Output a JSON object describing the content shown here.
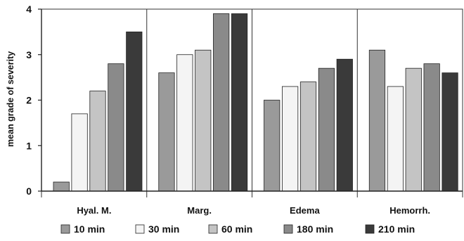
{
  "chart_data": {
    "type": "bar",
    "title": "",
    "xlabel": "",
    "ylabel": "mean grade of severity",
    "ylim": [
      0,
      4
    ],
    "yticks": [
      "0",
      "1",
      "2",
      "3",
      "4"
    ],
    "categories": [
      "Hyal. M.",
      "Marg.",
      "Edema",
      "Hemorrh."
    ],
    "grid": false,
    "legend_position": "bottom",
    "series": [
      {
        "name": "10 min",
        "color": "#9a9a9a",
        "values": [
          0.2,
          2.6,
          2.0,
          3.1
        ]
      },
      {
        "name": "30 min",
        "color": "#f4f4f4",
        "values": [
          1.7,
          3.0,
          2.3,
          2.3
        ]
      },
      {
        "name": "60 min",
        "color": "#c4c4c4",
        "values": [
          2.2,
          3.1,
          2.4,
          2.7
        ]
      },
      {
        "name": "180 min",
        "color": "#8a8a8a",
        "values": [
          2.8,
          3.9,
          2.7,
          2.8
        ]
      },
      {
        "name": "210 min",
        "color": "#3a3a3a",
        "values": [
          3.5,
          3.9,
          2.9,
          2.6
        ]
      }
    ]
  }
}
